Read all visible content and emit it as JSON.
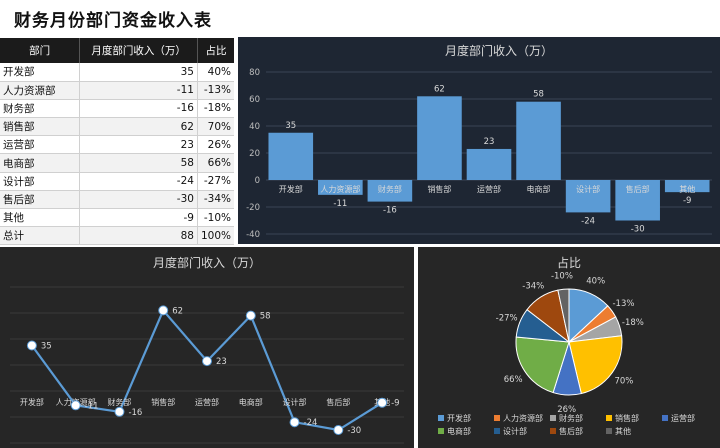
{
  "title": "财务月份部门资金收入表",
  "table": {
    "headers": [
      "部门",
      "月度部门收入（万）",
      "占比"
    ],
    "rows": [
      {
        "dept": "开发部",
        "income": "35",
        "ratio": "40%"
      },
      {
        "dept": "人力资源部",
        "income": "-11",
        "ratio": "-13%"
      },
      {
        "dept": "财务部",
        "income": "-16",
        "ratio": "-18%"
      },
      {
        "dept": "销售部",
        "income": "62",
        "ratio": "70%"
      },
      {
        "dept": "运营部",
        "income": "23",
        "ratio": "26%"
      },
      {
        "dept": "电商部",
        "income": "58",
        "ratio": "66%"
      },
      {
        "dept": "设计部",
        "income": "-24",
        "ratio": "-27%"
      },
      {
        "dept": "售后部",
        "income": "-30",
        "ratio": "-34%"
      },
      {
        "dept": "其他",
        "income": "-9",
        "ratio": "-10%"
      },
      {
        "dept": "总计",
        "income": "88",
        "ratio": "100%"
      }
    ]
  },
  "chart_data": [
    {
      "type": "bar",
      "title": "月度部门收入（万）",
      "categories": [
        "开发部",
        "人力资源部",
        "财务部",
        "销售部",
        "运营部",
        "电商部",
        "设计部",
        "售后部",
        "其他"
      ],
      "values": [
        35,
        -11,
        -16,
        62,
        23,
        58,
        -24,
        -30,
        -9
      ],
      "ylim": [
        -40,
        80
      ],
      "yticks": [
        80,
        60,
        40,
        20,
        0,
        -20,
        -40
      ],
      "grid": true,
      "color": "#5b9bd5"
    },
    {
      "type": "line",
      "title": "月度部门收入（万）",
      "categories": [
        "开发部",
        "人力资源部",
        "财务部",
        "销售部",
        "运营部",
        "电商部",
        "设计部",
        "售后部",
        "其他"
      ],
      "values": [
        35,
        -11,
        -16,
        62,
        23,
        58,
        -24,
        -30,
        -9
      ],
      "ylim": [
        -40,
        80
      ],
      "grid": true,
      "color": "#5b9bd5"
    },
    {
      "type": "pie",
      "title": "占比",
      "categories": [
        "开发部",
        "人力资源部",
        "财务部",
        "销售部",
        "运营部",
        "电商部",
        "设计部",
        "售后部",
        "其他"
      ],
      "values": [
        35,
        11,
        16,
        62,
        23,
        58,
        24,
        30,
        9
      ],
      "labels": [
        "40%",
        "-13%",
        "-18%",
        "70%",
        "26%",
        "66%",
        "-27%",
        "-34%",
        "-10%"
      ],
      "colors": [
        "#5b9bd5",
        "#ed7d31",
        "#a5a5a5",
        "#ffc000",
        "#4472c4",
        "#70ad47",
        "#255e91",
        "#9e480e",
        "#636363"
      ],
      "legend": "bottom"
    }
  ]
}
